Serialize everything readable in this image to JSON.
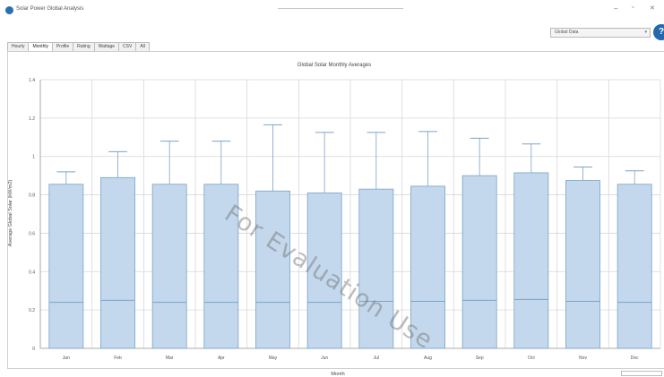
{
  "window": {
    "title": "Solar Power Global Analysis"
  },
  "dataset_select": {
    "value": "Global Data"
  },
  "help_button": {
    "label": "?"
  },
  "tabs": [
    {
      "label": "Hourly",
      "active": false
    },
    {
      "label": "Monthly",
      "active": true
    },
    {
      "label": "Profile",
      "active": false
    },
    {
      "label": "Rating",
      "active": false
    },
    {
      "label": "Wattage",
      "active": false
    },
    {
      "label": "CSV",
      "active": false
    },
    {
      "label": "All",
      "active": false
    }
  ],
  "watermark": "For Evaluation Use",
  "colors": {
    "box_fill": "#c3d8ec",
    "box_stroke": "#7aa3c9",
    "grid": "#d8d8d8",
    "accent": "#2468ad"
  },
  "chart_data": {
    "type": "box",
    "title": "Global Solar Monthly Averages",
    "xlabel": "Month",
    "ylabel": "Average Global Solar (kW/m2)",
    "ylim": [
      0,
      1.4
    ],
    "yticks": [
      "0",
      "0.2",
      "0.4",
      "0.6",
      "0.8",
      "1",
      "1.2",
      "1.4"
    ],
    "grid": true,
    "categories": [
      "Jan",
      "Feb",
      "Mar",
      "Apr",
      "May",
      "Jun",
      "Jul",
      "Aug",
      "Sep",
      "Oct",
      "Nov",
      "Dec"
    ],
    "series": [
      {
        "whisker_low": [
          0,
          0,
          0,
          0,
          0,
          0,
          0,
          0,
          0,
          0,
          0,
          0
        ],
        "q1": [
          0,
          0,
          0,
          0,
          0,
          0,
          0,
          0,
          0,
          0,
          0,
          0
        ],
        "median": [
          0.24,
          0.25,
          0.24,
          0.24,
          0.24,
          0.24,
          0.245,
          0.245,
          0.25,
          0.255,
          0.245,
          0.24
        ],
        "q3": [
          0.855,
          0.89,
          0.855,
          0.855,
          0.82,
          0.81,
          0.83,
          0.845,
          0.9,
          0.915,
          0.875,
          0.855
        ],
        "whisker_high": [
          0.92,
          1.025,
          1.08,
          1.08,
          1.165,
          1.125,
          1.125,
          1.13,
          1.095,
          1.065,
          0.945,
          0.925
        ]
      }
    ]
  }
}
